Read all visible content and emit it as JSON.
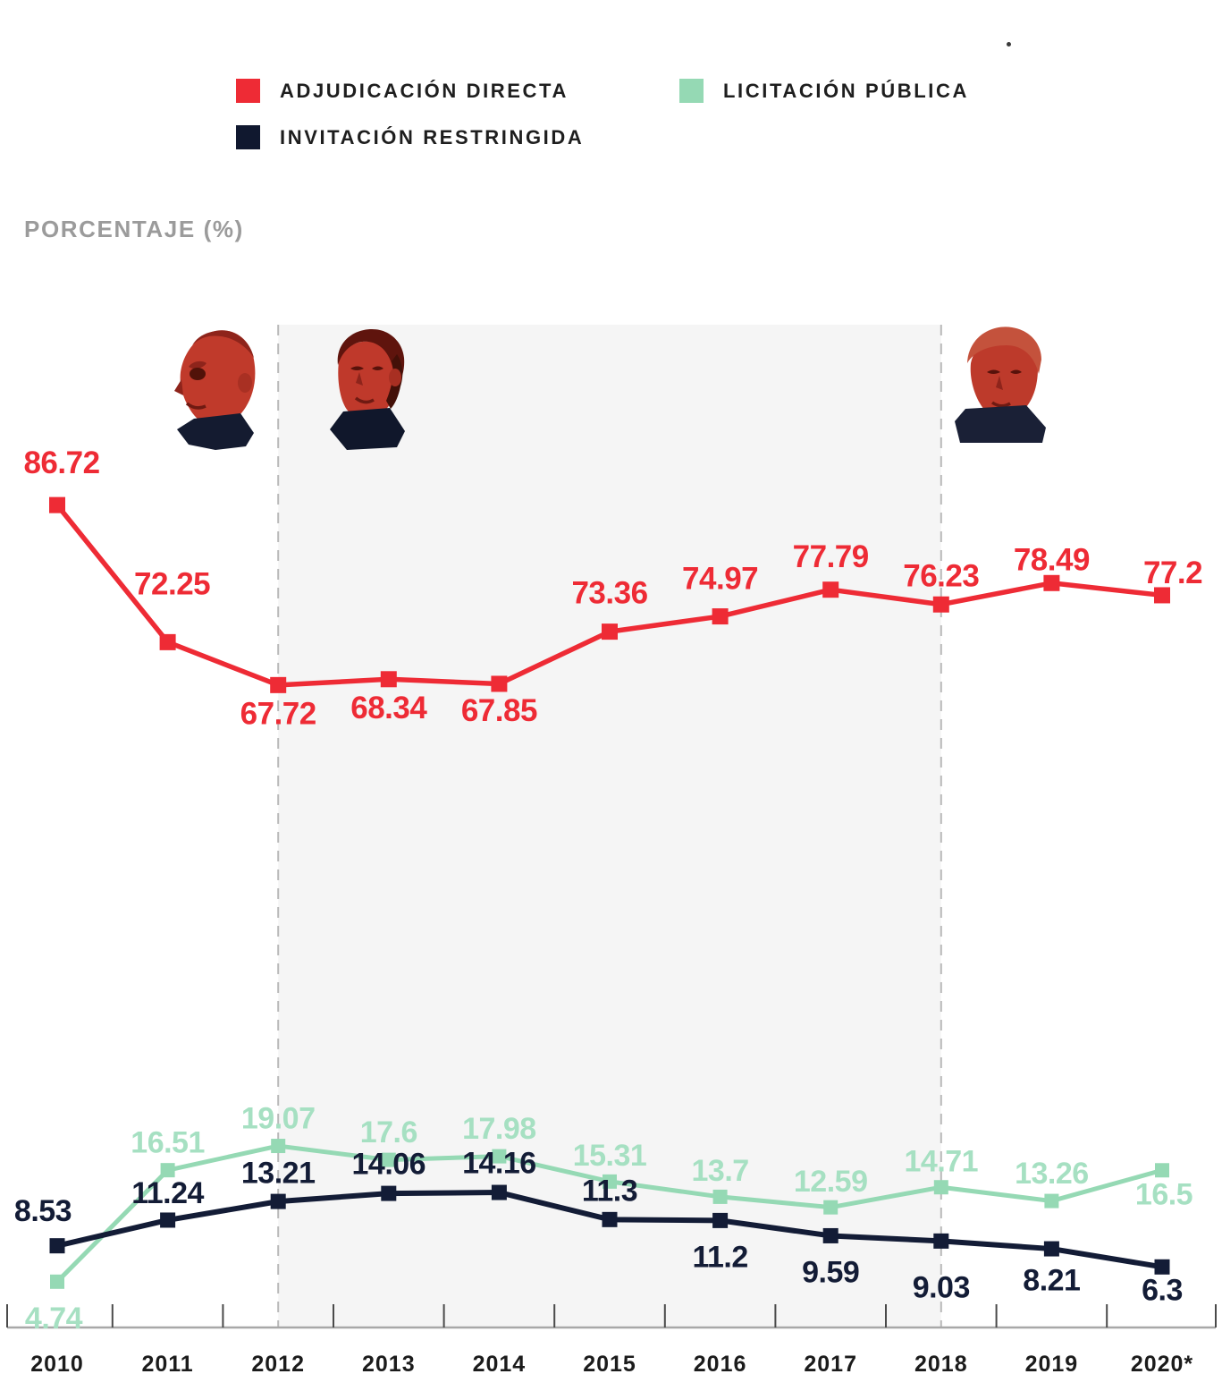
{
  "page": {
    "background": "#ffffff"
  },
  "legend": {
    "items": [
      {
        "label": "ADJUDICACIÓN DIRECTA",
        "color": "#ee2b35",
        "icon": "red-square-swatch"
      },
      {
        "label": "LICITACIÓN PÚBLICA",
        "color": "#95d9b4",
        "icon": "green-square-swatch"
      },
      {
        "label": "INVITACIÓN RESTRINGIDA",
        "color": "#10182f",
        "icon": "navy-square-swatch"
      }
    ]
  },
  "axis_label": "PORCENTAJE (%)",
  "chart_data": {
    "type": "line",
    "title": "",
    "xlabel": "",
    "ylabel": "PORCENTAJE (%)",
    "ylim": [
      0,
      95
    ],
    "grid": false,
    "legend_position": "top",
    "marker": "square",
    "categories": [
      "2010",
      "2011",
      "2012",
      "2013",
      "2014",
      "2015",
      "2016",
      "2017",
      "2018",
      "2019",
      "2020*"
    ],
    "series": [
      {
        "name": "ADJUDICACIÓN DIRECTA",
        "color": "#ee2b35",
        "label_color": "#ee2b35",
        "line_width": 5.5,
        "marker_size": 18,
        "label_size": 35,
        "values": [
          86.72,
          72.25,
          67.72,
          68.34,
          67.85,
          73.36,
          74.97,
          77.79,
          76.23,
          78.49,
          77.2
        ],
        "label_dy": [
          -48,
          -66,
          31,
          31,
          29,
          -44,
          -43,
          -38,
          -33,
          -27,
          -26
        ],
        "label_dx": [
          5,
          5,
          0,
          0,
          0,
          0,
          0,
          0,
          0,
          0,
          12
        ]
      },
      {
        "name": "LICITACIÓN PÚBLICA",
        "color": "#95d9b4",
        "label_color": "#a6e0c2",
        "line_width": 5,
        "marker_size": 16,
        "label_size": 34,
        "values": [
          4.74,
          16.51,
          19.07,
          17.6,
          17.98,
          15.31,
          13.7,
          12.59,
          14.71,
          13.26,
          16.5
        ],
        "label_dy": [
          40,
          -32,
          -32,
          -32,
          -32,
          -30,
          -30,
          -30,
          -30,
          -32,
          26
        ],
        "label_dx": [
          -4,
          0,
          0,
          0,
          0,
          0,
          0,
          0,
          0,
          0,
          2
        ]
      },
      {
        "name": "INVITACIÓN RESTRINGIDA",
        "color": "#131c36",
        "label_color": "#131c36",
        "line_width": 6,
        "marker_size": 17,
        "label_size": 34,
        "values": [
          8.53,
          11.24,
          13.21,
          14.06,
          14.16,
          11.3,
          11.2,
          9.59,
          9.03,
          8.21,
          6.3
        ],
        "label_dy": [
          -40,
          -31,
          -33,
          -34,
          -34,
          -33,
          40,
          40,
          51,
          34,
          25
        ],
        "label_dx": [
          -16,
          0,
          0,
          0,
          0,
          0,
          0,
          0,
          0,
          0,
          0
        ]
      }
    ],
    "highlight_band": {
      "from": "2012",
      "to": "2018",
      "fill": "#f5f5f5",
      "border_style": "dashed",
      "border_color": "#b9b9b9"
    },
    "annotations": {
      "portraits": [
        {
          "name": "president-felipe-calderon"
        },
        {
          "name": "president-enrique-pena-nieto"
        },
        {
          "name": "president-amlo"
        }
      ]
    }
  }
}
